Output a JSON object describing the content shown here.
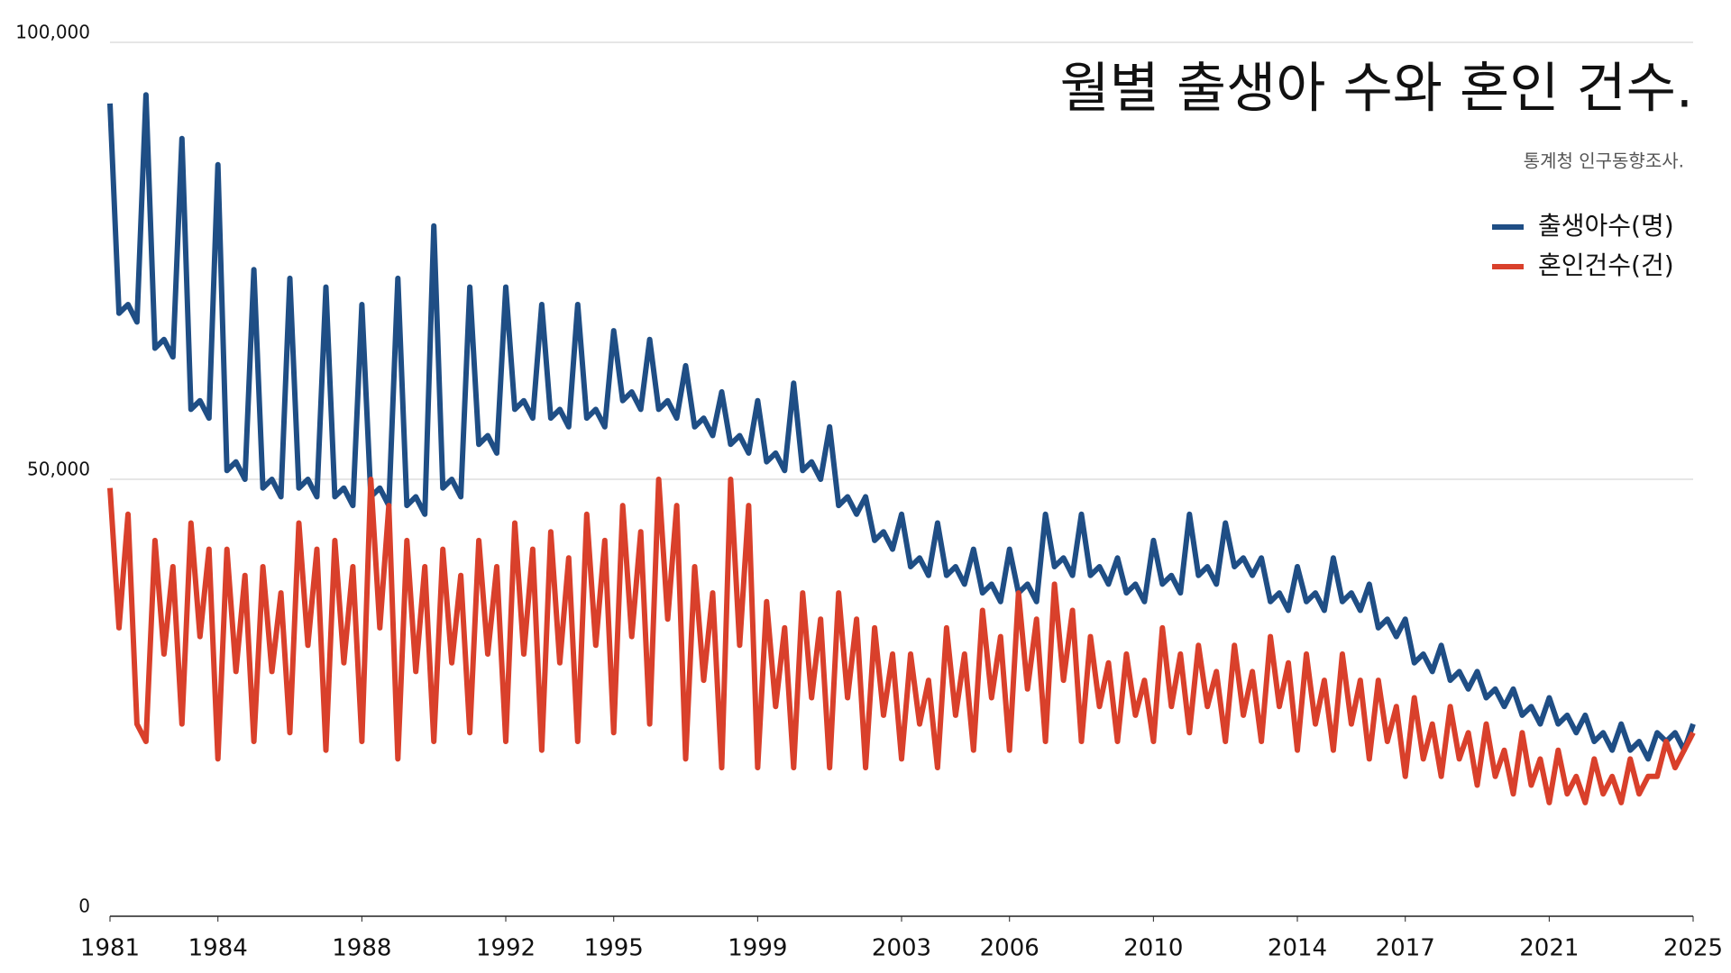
{
  "chart_data": {
    "type": "line",
    "title": "월별 출생아 수와 혼인 건수.",
    "subtitle": "통계청 인구동향조사.",
    "x": [
      1981,
      1981.25,
      1981.5,
      1981.75,
      1982,
      1982.25,
      1982.5,
      1982.75,
      1983,
      1983.25,
      1983.5,
      1983.75,
      1984,
      1984.25,
      1984.5,
      1984.75,
      1985,
      1985.25,
      1985.5,
      1985.75,
      1986,
      1986.25,
      1986.5,
      1986.75,
      1987,
      1987.25,
      1987.5,
      1987.75,
      1988,
      1988.25,
      1988.5,
      1988.75,
      1989,
      1989.25,
      1989.5,
      1989.75,
      1990,
      1990.25,
      1990.5,
      1990.75,
      1991,
      1991.25,
      1991.5,
      1991.75,
      1992,
      1992.25,
      1992.5,
      1992.75,
      1993,
      1993.25,
      1993.5,
      1993.75,
      1994,
      1994.25,
      1994.5,
      1994.75,
      1995,
      1995.25,
      1995.5,
      1995.75,
      1996,
      1996.25,
      1996.5,
      1996.75,
      1997,
      1997.25,
      1997.5,
      1997.75,
      1998,
      1998.25,
      1998.5,
      1998.75,
      1999,
      1999.25,
      1999.5,
      1999.75,
      2000,
      2000.25,
      2000.5,
      2000.75,
      2001,
      2001.25,
      2001.5,
      2001.75,
      2002,
      2002.25,
      2002.5,
      2002.75,
      2003,
      2003.25,
      2003.5,
      2003.75,
      2004,
      2004.25,
      2004.5,
      2004.75,
      2005,
      2005.25,
      2005.5,
      2005.75,
      2006,
      2006.25,
      2006.5,
      2006.75,
      2007,
      2007.25,
      2007.5,
      2007.75,
      2008,
      2008.25,
      2008.5,
      2008.75,
      2009,
      2009.25,
      2009.5,
      2009.75,
      2010,
      2010.25,
      2010.5,
      2010.75,
      2011,
      2011.25,
      2011.5,
      2011.75,
      2012,
      2012.25,
      2012.5,
      2012.75,
      2013,
      2013.25,
      2013.5,
      2013.75,
      2014,
      2014.25,
      2014.5,
      2014.75,
      2015,
      2015.25,
      2015.5,
      2015.75,
      2016,
      2016.25,
      2016.5,
      2016.75,
      2017,
      2017.25,
      2017.5,
      2017.75,
      2018,
      2018.25,
      2018.5,
      2018.75,
      2019,
      2019.25,
      2019.5,
      2019.75,
      2020,
      2020.25,
      2020.5,
      2020.75,
      2021,
      2021.25,
      2021.5,
      2021.75,
      2022,
      2022.25,
      2022.5,
      2022.75,
      2023,
      2023.25,
      2023.5,
      2023.75,
      2024,
      2024.25,
      2024.5,
      2024.75,
      2025
    ],
    "series": [
      {
        "name": "출생아수(명)",
        "color": "#1f4e85",
        "values": [
          93000,
          69000,
          70000,
          68000,
          94000,
          65000,
          66000,
          64000,
          89000,
          58000,
          59000,
          57000,
          86000,
          51000,
          52000,
          50000,
          74000,
          49000,
          50000,
          48000,
          73000,
          49000,
          50000,
          48000,
          72000,
          48000,
          49000,
          47000,
          70000,
          48000,
          49000,
          47000,
          73000,
          47000,
          48000,
          46000,
          79000,
          49000,
          50000,
          48000,
          72000,
          54000,
          55000,
          53000,
          72000,
          58000,
          59000,
          57000,
          70000,
          57000,
          58000,
          56000,
          70000,
          57000,
          58000,
          56000,
          67000,
          59000,
          60000,
          58000,
          66000,
          58000,
          59000,
          57000,
          63000,
          56000,
          57000,
          55000,
          60000,
          54000,
          55000,
          53000,
          59000,
          52000,
          53000,
          51000,
          61000,
          51000,
          52000,
          50000,
          56000,
          47000,
          48000,
          46000,
          48000,
          43000,
          44000,
          42000,
          46000,
          40000,
          41000,
          39000,
          45000,
          39000,
          40000,
          38000,
          42000,
          37000,
          38000,
          36000,
          42000,
          37000,
          38000,
          36000,
          46000,
          40000,
          41000,
          39000,
          46000,
          39000,
          40000,
          38000,
          41000,
          37000,
          38000,
          36000,
          43000,
          38000,
          39000,
          37000,
          46000,
          39000,
          40000,
          38000,
          45000,
          40000,
          41000,
          39000,
          41000,
          36000,
          37000,
          35000,
          40000,
          36000,
          37000,
          35000,
          41000,
          36000,
          37000,
          35000,
          38000,
          33000,
          34000,
          32000,
          34000,
          29000,
          30000,
          28000,
          31000,
          27000,
          28000,
          26000,
          28000,
          25000,
          26000,
          24000,
          26000,
          23000,
          24000,
          22000,
          25000,
          22000,
          23000,
          21000,
          23000,
          20000,
          21000,
          19000,
          22000,
          19000,
          20000,
          18000,
          21000,
          20000,
          21000,
          19000,
          22000
        ]
      },
      {
        "name": "혼인건수(건)",
        "color": "#d9402b",
        "values": [
          49000,
          33000,
          46000,
          22000,
          20000,
          43000,
          30000,
          40000,
          22000,
          45000,
          32000,
          42000,
          18000,
          42000,
          28000,
          39000,
          20000,
          40000,
          28000,
          37000,
          21000,
          45000,
          31000,
          42000,
          19000,
          43000,
          29000,
          40000,
          20000,
          50000,
          33000,
          47000,
          18000,
          43000,
          28000,
          40000,
          20000,
          42000,
          29000,
          39000,
          21000,
          43000,
          30000,
          40000,
          20000,
          45000,
          30000,
          42000,
          19000,
          44000,
          29000,
          41000,
          20000,
          46000,
          31000,
          43000,
          21000,
          47000,
          32000,
          44000,
          22000,
          50000,
          34000,
          47000,
          18000,
          40000,
          27000,
          37000,
          17000,
          50000,
          31000,
          47000,
          17000,
          36000,
          24000,
          33000,
          17000,
          37000,
          25000,
          34000,
          17000,
          37000,
          25000,
          34000,
          17000,
          33000,
          23000,
          30000,
          18000,
          30000,
          22000,
          27000,
          17000,
          33000,
          23000,
          30000,
          19000,
          35000,
          25000,
          32000,
          19000,
          37000,
          26000,
          34000,
          20000,
          38000,
          27000,
          35000,
          20000,
          32000,
          24000,
          29000,
          20000,
          30000,
          23000,
          27000,
          20000,
          33000,
          24000,
          30000,
          21000,
          31000,
          24000,
          28000,
          20000,
          31000,
          23000,
          28000,
          20000,
          32000,
          24000,
          29000,
          19000,
          30000,
          22000,
          27000,
          19000,
          30000,
          22000,
          27000,
          18000,
          27000,
          20000,
          24000,
          16000,
          25000,
          18000,
          22000,
          16000,
          24000,
          18000,
          21000,
          15000,
          22000,
          16000,
          19000,
          14000,
          21000,
          15000,
          18000,
          13000,
          19000,
          14000,
          16000,
          13000,
          18000,
          14000,
          16000,
          13000,
          18000,
          14000,
          16000,
          16000,
          20000,
          17000,
          19000,
          21000
        ]
      }
    ],
    "xlim": [
      1981,
      2025
    ],
    "xticks": [
      1981,
      1984,
      1988,
      1992,
      1995,
      1999,
      2003,
      2006,
      2010,
      2014,
      2017,
      2021,
      2025
    ],
    "ylim": [
      0,
      100000
    ],
    "yticks": [
      0,
      {
        "value": 50000,
        "label": "50,000"
      },
      {
        "value": 100000,
        "label": "100,000"
      }
    ],
    "grid": true
  }
}
